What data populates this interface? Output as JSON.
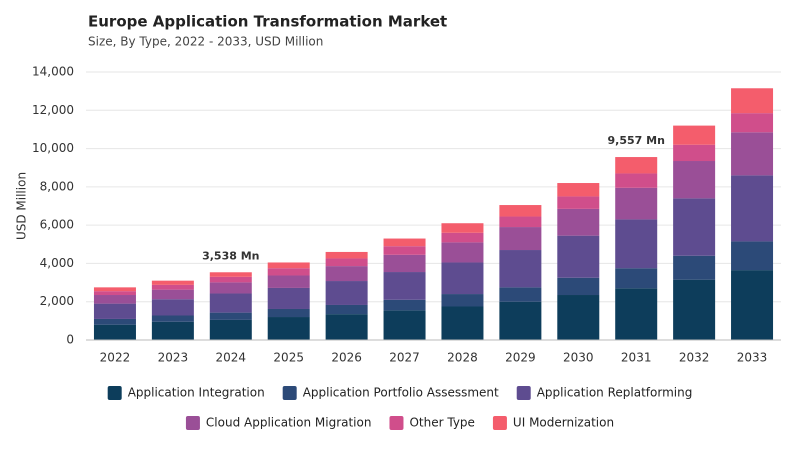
{
  "chart_data": {
    "type": "stacked_bar",
    "title": "Europe Application Transformation Market",
    "subtitle": "Size, By Type, 2022 - 2033, USD Million",
    "y_label": "USD Million",
    "categories": [
      "2022",
      "2023",
      "2024",
      "2025",
      "2026",
      "2027",
      "2028",
      "2029",
      "2030",
      "2031",
      "2032",
      "2033"
    ],
    "series": [
      {
        "name": "Application Integration",
        "color": "#0d3d5b",
        "values": [
          800,
          950,
          1050,
          1200,
          1350,
          1550,
          1750,
          2000,
          2350,
          2700,
          3150,
          3650
        ]
      },
      {
        "name": "Application Portfolio Assessment",
        "color": "#2c4a78",
        "values": [
          300,
          330,
          380,
          420,
          480,
          550,
          650,
          750,
          900,
          1050,
          1250,
          1500
        ]
      },
      {
        "name": "Application Replatforming",
        "color": "#5e4c90",
        "values": [
          800,
          850,
          1000,
          1100,
          1250,
          1450,
          1650,
          1950,
          2200,
          2550,
          3000,
          3450
        ]
      },
      {
        "name": "Cloud Application Migration",
        "color": "#9a4f97",
        "values": [
          450,
          500,
          580,
          650,
          780,
          900,
          1050,
          1200,
          1400,
          1650,
          1950,
          2250
        ]
      },
      {
        "name": "Other Type",
        "color": "#d04e8b",
        "values": [
          200,
          250,
          290,
          380,
          400,
          450,
          500,
          550,
          650,
          750,
          850,
          1000
        ]
      },
      {
        "name": "UI Modernization",
        "color": "#f45d6c",
        "values": [
          200,
          220,
          238,
          300,
          340,
          400,
          500,
          600,
          700,
          857,
          1000,
          1300
        ]
      }
    ],
    "annotations": [
      {
        "category": "2024",
        "value": 3538,
        "label": "3,538 Mn"
      },
      {
        "category": "2031",
        "value": 9557,
        "label": "9,557 Mn"
      }
    ],
    "ylim": [
      0,
      14000
    ],
    "yticks": [
      0,
      {
        "value": 2000,
        "label": "2,000"
      },
      {
        "value": 4000,
        "label": "4,000"
      },
      {
        "value": 6000,
        "label": "6,000"
      },
      {
        "value": 8000,
        "label": "8,000"
      },
      {
        "value": 10000,
        "label": "10,000"
      },
      {
        "value": 12000,
        "label": "12,000"
      },
      {
        "value": 14000,
        "label": "14,000"
      }
    ],
    "grid": true
  }
}
